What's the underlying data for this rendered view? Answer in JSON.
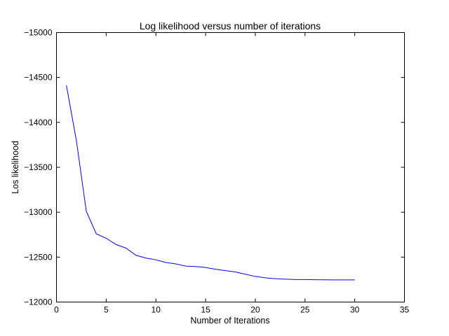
{
  "chart_data": {
    "type": "line",
    "title": "Log likelihood versus number of iterations",
    "xlabel": "Number of Iterations",
    "ylabel": "Los likelihood",
    "xlim": [
      0,
      35
    ],
    "ylim": [
      -15000,
      -12000
    ],
    "y_axis_direction": "reversed",
    "grid": false,
    "x_ticks": [
      0,
      5,
      10,
      15,
      20,
      25,
      30,
      35
    ],
    "y_ticks": [
      -15000,
      -14500,
      -14000,
      -13500,
      -13000,
      -12500,
      -12000
    ],
    "x_tick_labels": [
      "0",
      "5",
      "10",
      "15",
      "20",
      "25",
      "30",
      "35"
    ],
    "y_tick_labels": [
      "−15000",
      "−14500",
      "−14000",
      "−13500",
      "−13000",
      "−12500",
      "−12000"
    ],
    "series": [
      {
        "color": "#0000ff",
        "x": [
          1,
          2,
          3,
          4,
          5,
          6,
          7,
          8,
          9,
          10,
          11,
          12,
          13,
          14,
          15,
          16,
          17,
          18,
          19,
          20,
          21,
          22,
          23,
          24,
          25,
          26,
          27,
          28,
          29,
          30
        ],
        "y": [
          -14410,
          -13800,
          -13010,
          -12760,
          -12710,
          -12640,
          -12600,
          -12520,
          -12490,
          -12470,
          -12440,
          -12425,
          -12400,
          -12395,
          -12385,
          -12365,
          -12350,
          -12335,
          -12310,
          -12285,
          -12270,
          -12260,
          -12255,
          -12250,
          -12250,
          -12248,
          -12247,
          -12246,
          -12246,
          -12246
        ]
      }
    ]
  }
}
